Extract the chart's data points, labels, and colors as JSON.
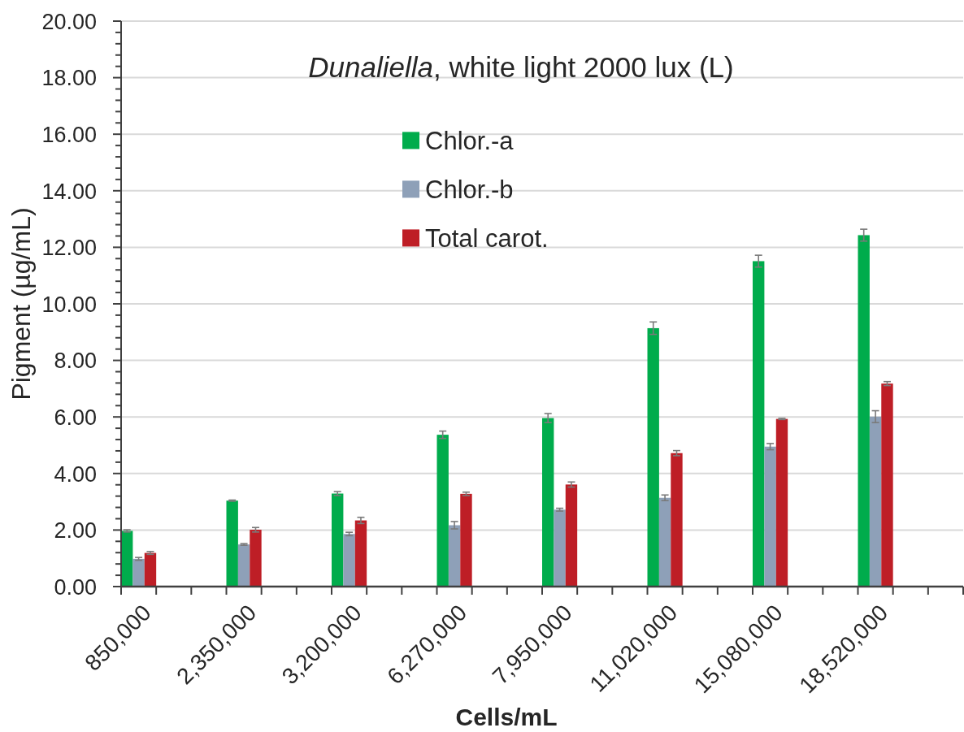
{
  "chart_data": {
    "type": "bar",
    "title": "Dunaliella, white light 2000 lux (L)",
    "xlabel": "Cells/mL",
    "ylabel": "Pigment (µg/mL)",
    "categories": [
      "850,000",
      "2,350,000",
      "3,200,000",
      "6,270,000",
      "7,950,000",
      "11,020,000",
      "15,080,000",
      "18,520,000"
    ],
    "series": [
      {
        "name": "Chlor.-a",
        "color": "#00ac4c",
        "values": [
          1.97,
          3.04,
          3.29,
          5.37,
          5.96,
          9.14,
          11.51,
          12.43
        ],
        "errors": [
          0.04,
          0.02,
          0.07,
          0.13,
          0.16,
          0.22,
          0.21,
          0.21
        ]
      },
      {
        "name": "Chlor.-b",
        "color": "#8ea0b8",
        "values": [
          0.98,
          1.49,
          1.86,
          2.17,
          2.72,
          3.14,
          4.95,
          6.01
        ],
        "errors": [
          0.05,
          0.03,
          0.06,
          0.13,
          0.05,
          0.1,
          0.11,
          0.21
        ]
      },
      {
        "name": "Total carot.",
        "color": "#be1e26",
        "values": [
          1.19,
          2.01,
          2.34,
          3.28,
          3.61,
          4.72,
          5.93,
          7.18
        ],
        "errors": [
          0.05,
          0.08,
          0.11,
          0.06,
          0.09,
          0.09,
          0.02,
          0.07
        ]
      }
    ],
    "ylim": [
      0,
      20
    ],
    "yticks": [
      {
        "value": 0,
        "label": "0.00"
      },
      {
        "value": 0.4,
        "label": null
      },
      {
        "value": 0.8,
        "label": null
      },
      {
        "value": 1.2,
        "label": null
      },
      {
        "value": 1.6,
        "label": null
      },
      {
        "value": 2,
        "label": "2.00"
      },
      {
        "value": 2.4,
        "label": null
      },
      {
        "value": 2.8,
        "label": null
      },
      {
        "value": 3.2,
        "label": null
      },
      {
        "value": 3.6,
        "label": null
      },
      {
        "value": 4,
        "label": "4.00"
      },
      {
        "value": 4.4,
        "label": null
      },
      {
        "value": 4.8,
        "label": null
      },
      {
        "value": 5.2,
        "label": null
      },
      {
        "value": 5.6,
        "label": null
      },
      {
        "value": 6,
        "label": "6.00"
      },
      {
        "value": 6.4,
        "label": null
      },
      {
        "value": 6.8,
        "label": null
      },
      {
        "value": 7.2,
        "label": null
      },
      {
        "value": 7.6,
        "label": null
      },
      {
        "value": 8,
        "label": "8.00"
      },
      {
        "value": 8.4,
        "label": null
      },
      {
        "value": 8.8,
        "label": null
      },
      {
        "value": 9.2,
        "label": null
      },
      {
        "value": 9.6,
        "label": null
      },
      {
        "value": 10,
        "label": "10.00"
      },
      {
        "value": 10.4,
        "label": null
      },
      {
        "value": 10.8,
        "label": null
      },
      {
        "value": 11.2,
        "label": null
      },
      {
        "value": 11.6,
        "label": null
      },
      {
        "value": 12,
        "label": "12.00"
      },
      {
        "value": 12.4,
        "label": null
      },
      {
        "value": 12.8,
        "label": null
      },
      {
        "value": 13.2,
        "label": null
      },
      {
        "value": 13.6,
        "label": null
      },
      {
        "value": 14,
        "label": "14.00"
      },
      {
        "value": 14.4,
        "label": null
      },
      {
        "value": 14.8,
        "label": null
      },
      {
        "value": 15.2,
        "label": null
      },
      {
        "value": 15.6,
        "label": null
      },
      {
        "value": 16,
        "label": "16.00"
      },
      {
        "value": 16.4,
        "label": null
      },
      {
        "value": 16.8,
        "label": null
      },
      {
        "value": 17.2,
        "label": null
      },
      {
        "value": 17.6,
        "label": null
      },
      {
        "value": 18,
        "label": "18.00"
      },
      {
        "value": 18.4,
        "label": null
      },
      {
        "value": 18.8,
        "label": null
      },
      {
        "value": 19.2,
        "label": null
      },
      {
        "value": 19.6,
        "label": null
      },
      {
        "value": 20,
        "label": "20.00"
      }
    ],
    "grid": "y",
    "legend": "top"
  }
}
